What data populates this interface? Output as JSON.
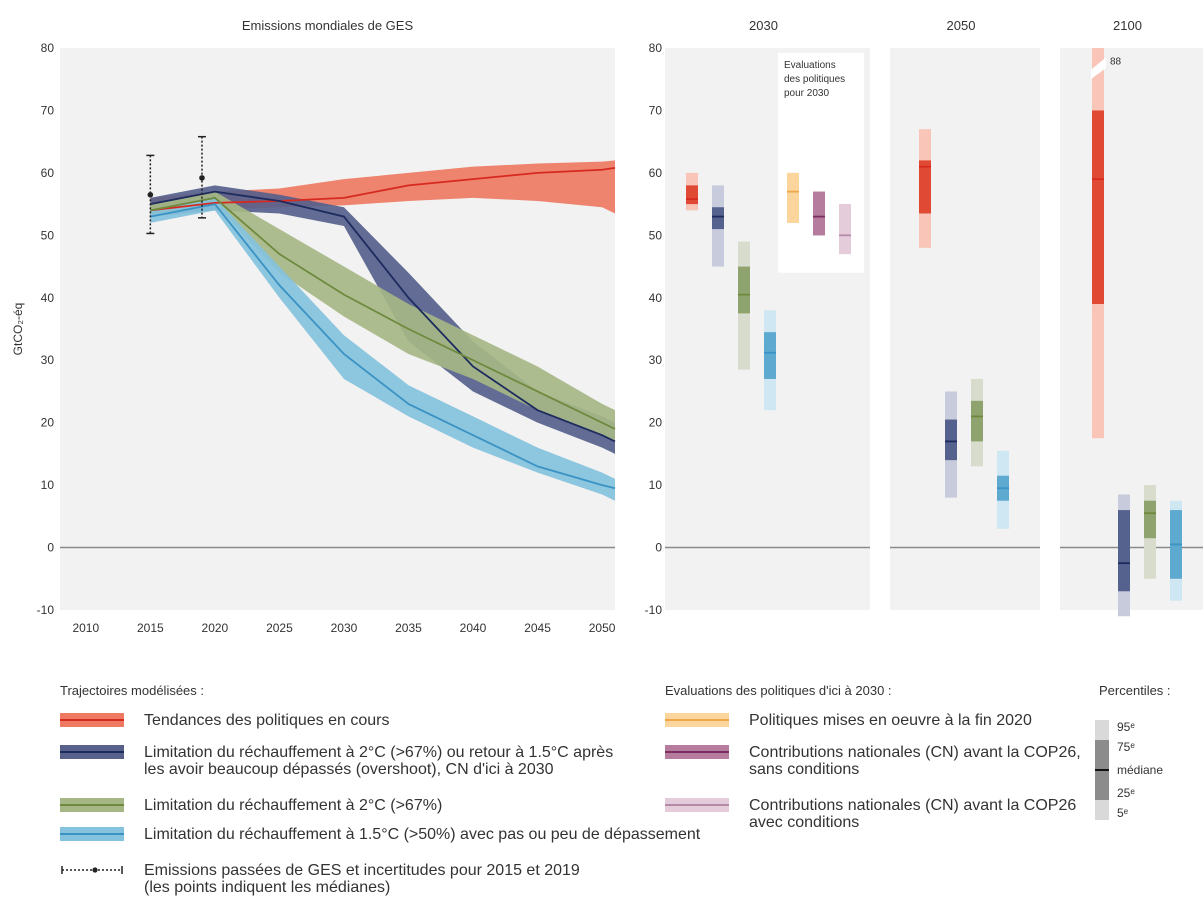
{
  "chart_data": [
    {
      "type": "area",
      "title": "Emissions mondiales de GES",
      "ylabel": "GtCO₂-éq",
      "xlabel": "",
      "xlim": [
        2008,
        2051
      ],
      "ylim": [
        -10,
        80
      ],
      "x_ticks": [
        "2010",
        "2015",
        "2020",
        "2025",
        "2030",
        "2035",
        "2040",
        "2045",
        "2050"
      ],
      "y_ticks": [
        "80",
        "70",
        "60",
        "50",
        "40",
        "30",
        "20",
        "10",
        "0",
        "-10"
      ],
      "historical": [
        {
          "year": 2015,
          "median": 56.5,
          "low": 50.3,
          "high": 62.8
        },
        {
          "year": 2019,
          "median": 59.2,
          "low": 52.8,
          "high": 65.8
        }
      ],
      "series": [
        {
          "key": "red",
          "x": [
            2015,
            2020,
            2025,
            2030,
            2035,
            2040,
            2045,
            2050,
            2051
          ],
          "low": [
            53,
            54,
            54.5,
            54.8,
            55.5,
            56,
            55.5,
            54.5,
            53.5
          ],
          "median": [
            54,
            55.2,
            55.5,
            56,
            58,
            59,
            60,
            60.5,
            60.8
          ],
          "high": [
            56,
            57,
            57.5,
            59,
            60,
            61,
            61.5,
            61.8,
            62
          ]
        },
        {
          "key": "navy",
          "x": [
            2015,
            2020,
            2025,
            2030,
            2035,
            2040,
            2045,
            2050,
            2051
          ],
          "low": [
            53,
            54,
            53.5,
            51.5,
            33,
            25,
            20,
            16,
            15
          ],
          "median": [
            55,
            57,
            55.5,
            53,
            40,
            29,
            22,
            18,
            17
          ],
          "high": [
            56,
            58,
            56.5,
            54.5,
            44,
            33,
            25,
            21,
            20
          ]
        },
        {
          "key": "green",
          "x": [
            2015,
            2020,
            2025,
            2030,
            2035,
            2040,
            2045,
            2050,
            2051
          ],
          "low": [
            53,
            55,
            44,
            37,
            31,
            27,
            22,
            18,
            17
          ],
          "median": [
            54,
            56,
            47,
            40.5,
            35,
            30,
            25,
            20,
            19
          ],
          "high": [
            55,
            57,
            51,
            45,
            39,
            34,
            29,
            23,
            22
          ]
        },
        {
          "key": "blue",
          "x": [
            2015,
            2020,
            2025,
            2030,
            2035,
            2040,
            2045,
            2050,
            2051
          ],
          "low": [
            52,
            54,
            40,
            27,
            21,
            16,
            12,
            8.5,
            7.5
          ],
          "median": [
            53,
            55,
            42,
            31,
            23,
            18,
            13,
            10,
            9.5
          ],
          "high": [
            54,
            56,
            45,
            34,
            26,
            21,
            16,
            12,
            11
          ]
        }
      ]
    },
    {
      "type": "bar",
      "title": "2030",
      "ylim": [
        -10,
        80
      ],
      "y_ticks": [
        "80",
        "70",
        "60",
        "50",
        "40",
        "30",
        "20",
        "10",
        "0",
        "-10"
      ],
      "annotation": [
        "Evaluations",
        "des politiques",
        "pour 2030"
      ],
      "bars": [
        {
          "key": "red",
          "p5": 54,
          "p25": 55,
          "median": 55.8,
          "p75": 58,
          "p95": 60
        },
        {
          "key": "navy",
          "p5": 45,
          "p25": 51,
          "median": 53,
          "p75": 54.5,
          "p95": 58
        },
        {
          "key": "green",
          "p5": 28.5,
          "p25": 37.5,
          "median": 40.5,
          "p75": 45,
          "p95": 49
        },
        {
          "key": "blue",
          "p5": 22,
          "p25": 27,
          "median": 31.2,
          "p75": 34.5,
          "p95": 38
        },
        {
          "key": "orange",
          "p5": 52,
          "p25": 52,
          "median": 57,
          "p75": 60,
          "p95": 60
        },
        {
          "key": "purple",
          "p5": 50,
          "p25": 50,
          "median": 53,
          "p75": 57,
          "p95": 57
        },
        {
          "key": "lilac",
          "p5": 47,
          "p25": 47,
          "median": 50,
          "p75": 55,
          "p95": 55
        }
      ]
    },
    {
      "type": "bar",
      "title": "2050",
      "ylim": [
        -10,
        80
      ],
      "bars": [
        {
          "key": "red",
          "p5": 48,
          "p25": 53.5,
          "median": 61,
          "p75": 62,
          "p95": 67
        },
        {
          "key": "navy",
          "p5": 8,
          "p25": 14,
          "median": 17,
          "p75": 20.5,
          "p95": 25
        },
        {
          "key": "green",
          "p5": 13,
          "p25": 17,
          "median": 21,
          "p75": 23.5,
          "p95": 27
        },
        {
          "key": "blue",
          "p5": 3,
          "p25": 7.5,
          "median": 9.5,
          "p75": 11.5,
          "p95": 15.5
        }
      ]
    },
    {
      "type": "bar",
      "title": "2100",
      "ylim": [
        -10,
        80
      ],
      "break_label": "88",
      "bars": [
        {
          "key": "red",
          "p5": 17.5,
          "p25": 39,
          "median": 59,
          "p75": 70,
          "p95": 80
        },
        {
          "key": "navy",
          "p5": -11,
          "p25": -7,
          "median": -2.5,
          "p75": 6,
          "p95": 8.5
        },
        {
          "key": "green",
          "p5": -5,
          "p25": 1.5,
          "median": 5.5,
          "p75": 7.5,
          "p95": 10
        },
        {
          "key": "blue",
          "p5": -8.5,
          "p25": -5,
          "median": 0.5,
          "p75": 6,
          "p95": 7.5
        }
      ]
    }
  ],
  "colors": {
    "red": {
      "dark": "#e04a35",
      "band": "#ee7a63",
      "light": "#f8c5b8",
      "line": "#d62a20"
    },
    "navy": {
      "dark": "#55628e",
      "band": "#57618c",
      "light": "#c7cbdc",
      "line": "#1d2b5e"
    },
    "green": {
      "dark": "#8ea36e",
      "band": "#a6b785",
      "light": "#d8dccc",
      "line": "#6e8a3e"
    },
    "blue": {
      "dark": "#5ea9cf",
      "band": "#84c2dd",
      "light": "#cfe7f3",
      "line": "#3a93c4"
    },
    "orange": {
      "dark": "#fbd59c",
      "band": "#fbd59c",
      "light": "#fbd59c",
      "line": "#eea64a"
    },
    "purple": {
      "dark": "#b57c9e",
      "band": "#b57c9e",
      "light": "#b57c9e",
      "line": "#7a2f5e"
    },
    "lilac": {
      "dark": "#e4ccdb",
      "band": "#e4ccdb",
      "light": "#e4ccdb",
      "line": "#b48aa6"
    },
    "panel_bg": "#f2f2f2",
    "zero_line": "#8a8a8a"
  },
  "legend": {
    "trajectoires_title": "Trajectoires modélisées :",
    "items": [
      {
        "key": "red",
        "lines": [
          "Tendances des politiques en cours"
        ]
      },
      {
        "key": "navy",
        "lines": [
          "Limitation du réchauffement à 2°C (>67%) ou retour à 1.5°C après",
          "les avoir beaucoup dépassés (overshoot), CN d'ici à 2030"
        ]
      },
      {
        "key": "green",
        "lines": [
          "Limitation du réchauffement à 2°C (>67%)"
        ]
      },
      {
        "key": "blue",
        "lines": [
          "Limitation du réchauffement à 1.5°C (>50%) avec pas ou peu de dépassement"
        ]
      }
    ],
    "historical_lines": [
      "Emissions passées de GES et incertitudes pour 2015 et 2019",
      "(les points indiquent les médianes)"
    ],
    "policies_title": "Evaluations des politiques d'ici à 2030 :",
    "policies": [
      {
        "key": "orange",
        "lines": [
          "Politiques mises en oeuvre à la fin 2020"
        ]
      },
      {
        "key": "purple",
        "lines": [
          "Contributions nationales (CN) avant la COP26,",
          "sans conditions"
        ]
      },
      {
        "key": "lilac",
        "lines": [
          "Contributions nationales (CN) avant la COP26",
          "avec conditions"
        ]
      }
    ],
    "percentiles_title": "Percentiles :",
    "percentile_labels": [
      "95ᵉ",
      "75ᵉ",
      "médiane",
      "25ᵉ",
      "5ᵉ"
    ]
  }
}
